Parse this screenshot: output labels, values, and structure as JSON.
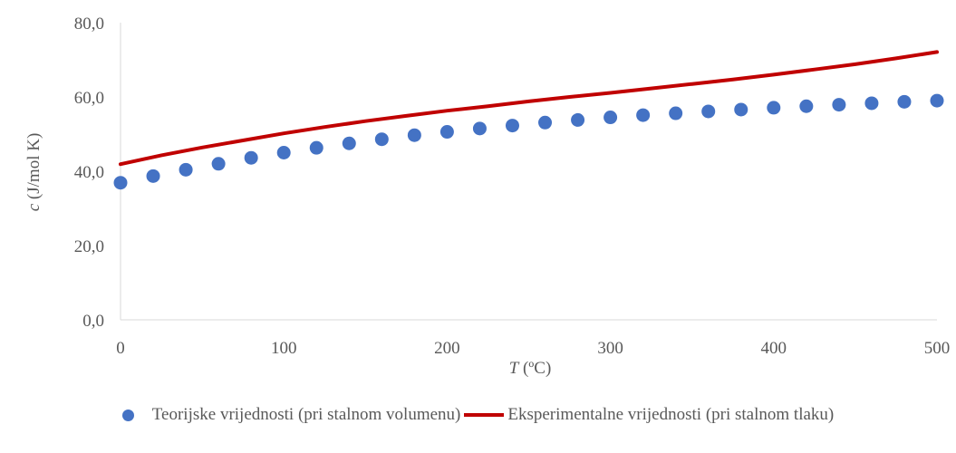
{
  "chart_data": {
    "type": "scatter",
    "xlabel_var": "T",
    "xlabel_unit": " (ºC)",
    "ylabel_var": "c",
    "ylabel_unit": " (J/mol K)",
    "xlim": [
      0,
      500
    ],
    "ylim": [
      0,
      80
    ],
    "xticks": [
      0,
      100,
      200,
      300,
      400,
      500
    ],
    "yticks": [
      0,
      20,
      40,
      60,
      80
    ],
    "ytick_labels": [
      "0,0",
      "20,0",
      "40,0",
      "60,0",
      "80,0"
    ],
    "grid": false,
    "legend_position": "bottom",
    "series": [
      {
        "name": "Teorijske vrijednosti (pri stalnom volumenu)",
        "kind": "scatter",
        "color": "#4472c4",
        "x": [
          0,
          20,
          40,
          60,
          80,
          100,
          120,
          140,
          160,
          180,
          200,
          220,
          240,
          260,
          280,
          300,
          320,
          340,
          360,
          380,
          400,
          420,
          440,
          460,
          480,
          500
        ],
        "y": [
          36.9,
          38.7,
          40.4,
          42.0,
          43.6,
          45.0,
          46.3,
          47.5,
          48.6,
          49.7,
          50.6,
          51.5,
          52.3,
          53.1,
          53.8,
          54.5,
          55.1,
          55.6,
          56.1,
          56.6,
          57.1,
          57.5,
          57.9,
          58.3,
          58.7,
          59.0
        ]
      },
      {
        "name": "Eksperimentalne vrijednosti (pri stalnom tlaku)",
        "kind": "line",
        "color": "#c00000",
        "x": [
          0,
          25,
          50,
          75,
          100,
          125,
          150,
          175,
          200,
          225,
          250,
          275,
          300,
          325,
          350,
          375,
          400,
          425,
          450,
          475,
          500
        ],
        "y": [
          41.9,
          44.3,
          46.4,
          48.3,
          50.2,
          51.9,
          53.5,
          54.9,
          56.3,
          57.5,
          58.8,
          60.0,
          61.1,
          62.3,
          63.5,
          64.7,
          66.0,
          67.4,
          68.8,
          70.4,
          72.1
        ]
      }
    ]
  }
}
